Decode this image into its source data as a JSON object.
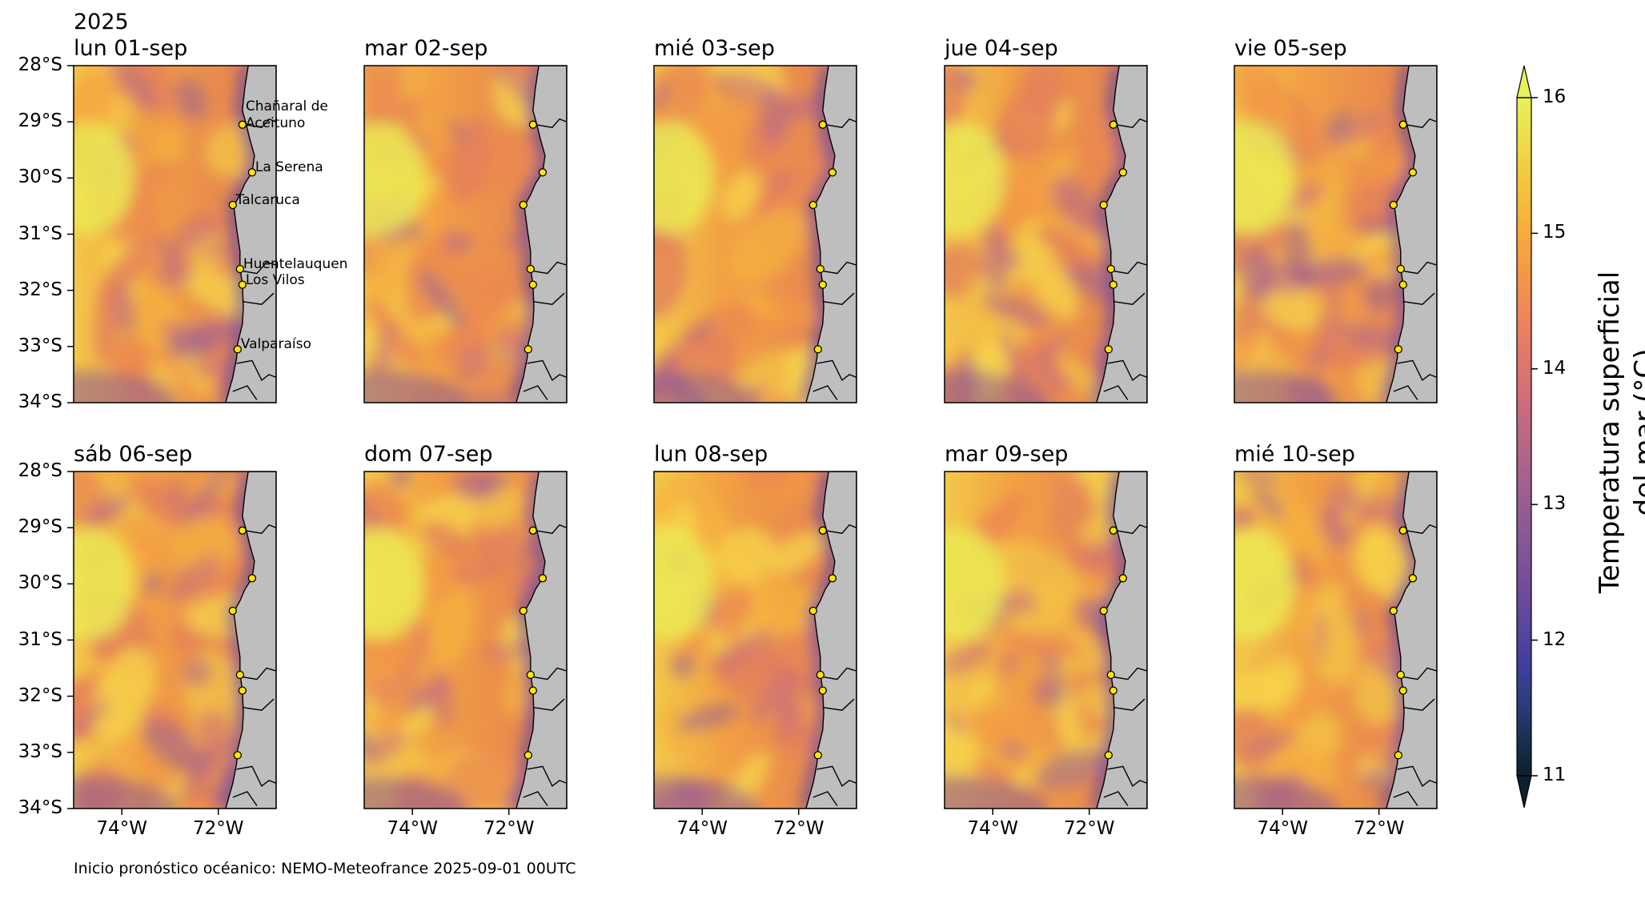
{
  "year": "2025",
  "panels": [
    {
      "title": "lun 01-sep"
    },
    {
      "title": "mar 02-sep"
    },
    {
      "title": "mié 03-sep"
    },
    {
      "title": "jue 04-sep"
    },
    {
      "title": "vie 05-sep"
    },
    {
      "title": "sáb 06-sep"
    },
    {
      "title": "dom 07-sep"
    },
    {
      "title": "lun 08-sep"
    },
    {
      "title": "mar 09-sep"
    },
    {
      "title": "mié 10-sep"
    }
  ],
  "lat_ticks": [
    "28°S",
    "29°S",
    "30°S",
    "31°S",
    "32°S",
    "33°S",
    "34°S"
  ],
  "lon_ticks": [
    "74°W",
    "72°W"
  ],
  "map_extent": {
    "lon": [
      -75,
      -70.8
    ],
    "lat": [
      -34,
      -28
    ]
  },
  "sites": [
    {
      "name": "Chañaral de Aceituno",
      "label_lines": [
        "Chañaral de",
        "Aceituno"
      ],
      "lat": -29.05,
      "lon": -71.5
    },
    {
      "name": "La Serena",
      "label_lines": [
        "La Serena"
      ],
      "lat": -29.9,
      "lon": -71.3
    },
    {
      "name": "Talcaruca",
      "label_lines": [
        "Talcaruca"
      ],
      "lat": -30.48,
      "lon": -71.7
    },
    {
      "name": "Huentelauquen",
      "label_lines": [
        "Huentelauquen"
      ],
      "lat": -31.62,
      "lon": -71.55
    },
    {
      "name": "Los Vilos",
      "label_lines": [
        "Los Vilos"
      ],
      "lat": -31.9,
      "lon": -71.5
    },
    {
      "name": "Valparaíso",
      "label_lines": [
        "Valparaíso"
      ],
      "lat": -33.05,
      "lon": -71.6
    }
  ],
  "colorbar": {
    "title_lines": [
      "Temperatura superficial",
      "del mar (°C)"
    ],
    "ticks": [
      "11",
      "12",
      "13",
      "14",
      "15",
      "16"
    ],
    "range": [
      11,
      16
    ],
    "extend": "both",
    "colormap": [
      "#0d1f2d",
      "#1a2f4e",
      "#2a3d7a",
      "#3c3f9c",
      "#55449f",
      "#6a4b9c",
      "#7c5298",
      "#8d5a93",
      "#9e608d",
      "#b16588",
      "#c46a80",
      "#d77176",
      "#e57a68",
      "#ee8759",
      "#f49649",
      "#f7a73e",
      "#f6ba3c",
      "#f2cc43",
      "#ece04e",
      "#e8f15b"
    ]
  },
  "land_color": "#bebebe",
  "marker_color": "#ffe600",
  "footer": "Inicio pronóstico océanico: NEMO-Meteofrance 2025-09-01 00UTC"
}
